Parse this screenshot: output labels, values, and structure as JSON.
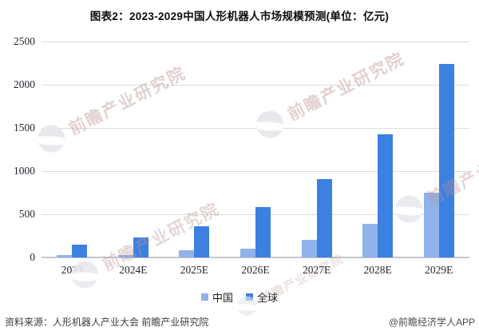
{
  "title": "图表2：2023-2029中国人形机器人市场规模预测(单位：亿元)",
  "watermark": {
    "text": "前瞻产业研究院"
  },
  "footer": {
    "source": "资料来源：人形机器人产业大会 前瞻产业研究院",
    "credit": "@前瞻经济学人APP"
  },
  "chart_data": {
    "type": "bar",
    "title": "图表2：2023-2029中国人形机器人市场规模预测(单位：亿元)",
    "categories": [
      "2023",
      "2024E",
      "2025E",
      "2026E",
      "2027E",
      "2028E",
      "2029E"
    ],
    "series": [
      {
        "name": "中国",
        "color": "#8FB2EA",
        "values": [
          25,
          30,
          80,
          100,
          200,
          390,
          750
        ]
      },
      {
        "name": "全球",
        "color": "#3C80E0",
        "values": [
          150,
          230,
          365,
          585,
          905,
          1430,
          2240
        ]
      }
    ],
    "xlabel": "",
    "ylabel": "",
    "ylim": [
      0,
      2500
    ],
    "yticks": [
      0,
      500,
      1000,
      1500,
      2000,
      2500
    ],
    "grid": true,
    "legend_position": "bottom"
  }
}
